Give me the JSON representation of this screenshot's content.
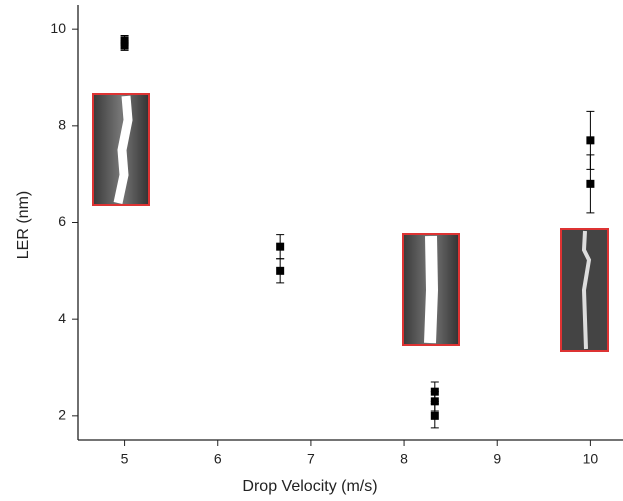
{
  "chart_data": {
    "type": "scatter",
    "x_label": "Drop Velocity (m/s)",
    "y_label": "LER (nm)",
    "x": [
      5,
      5,
      6.67,
      6.67,
      8.33,
      8.33,
      8.33,
      10,
      10
    ],
    "y": [
      9.77,
      9.66,
      5.5,
      5.0,
      2.5,
      2.3,
      2.0,
      7.7,
      6.8
    ],
    "errors": [
      0.1,
      0.1,
      0.25,
      0.25,
      0.2,
      0.2,
      0.25,
      0.6,
      0.6
    ],
    "color": "#000000",
    "xlim": [
      4.5,
      10.35
    ],
    "ylim": [
      1.5,
      10.5
    ],
    "xticks": [
      5,
      6,
      7,
      8,
      9,
      10
    ],
    "yticks": [
      2,
      4,
      6,
      8,
      10
    ]
  }
}
